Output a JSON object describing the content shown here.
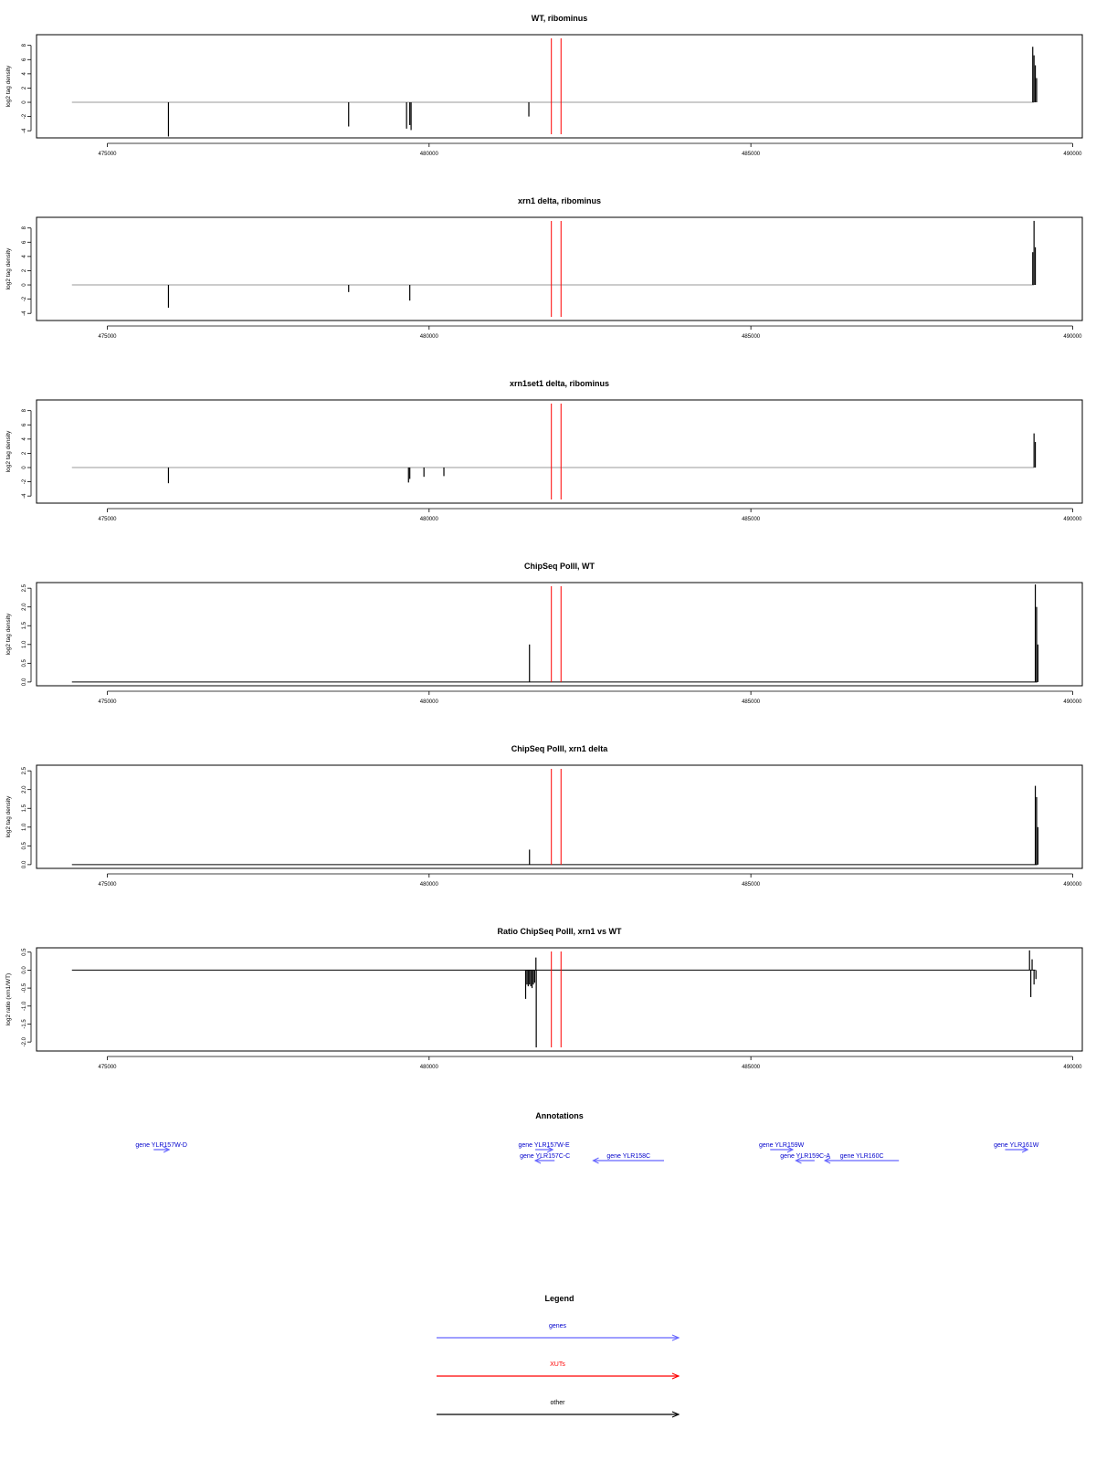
{
  "chart_data": [
    {
      "type": "line",
      "title": "WT, ribominus",
      "ylabel": "log2 tag density",
      "xlim": [
        473900,
        490150
      ],
      "ylim": [
        -5,
        9.5
      ],
      "yticks": [
        -4,
        -2,
        0,
        2,
        4,
        6,
        8
      ],
      "ytick_labels": [
        "-4",
        "-2",
        "0",
        "2",
        "4",
        "6",
        "8"
      ],
      "xticks": [
        475000,
        480000,
        485000,
        490000
      ],
      "xtick_labels": [
        "475000",
        "480000",
        "485000",
        "490000"
      ],
      "baseline": {
        "from": 474450,
        "to": 489400,
        "y": 0,
        "color": "#999999"
      },
      "spikes": [
        {
          "x": 475950,
          "y": -4.8
        },
        {
          "x": 478750,
          "y": -3.4
        },
        {
          "x": 479650,
          "y": -3.7
        },
        {
          "x": 479700,
          "y": -3.2
        },
        {
          "x": 479720,
          "y": -3.9
        },
        {
          "x": 481550,
          "y": -2.0
        },
        {
          "x": 489380,
          "y": 7.8
        },
        {
          "x": 489400,
          "y": 6.6
        },
        {
          "x": 489420,
          "y": 5.2
        },
        {
          "x": 489440,
          "y": 3.4
        }
      ],
      "xut_lines": [
        481900,
        482050
      ]
    },
    {
      "type": "line",
      "title": "xrn1 delta, ribominus",
      "ylabel": "log2 tag density",
      "xlim": [
        473900,
        490150
      ],
      "ylim": [
        -5,
        9.5
      ],
      "yticks": [
        -4,
        -2,
        0,
        2,
        4,
        6,
        8
      ],
      "ytick_labels": [
        "-4",
        "-2",
        "0",
        "2",
        "4",
        "6",
        "8"
      ],
      "xticks": [
        475000,
        480000,
        485000,
        490000
      ],
      "xtick_labels": [
        "475000",
        "480000",
        "485000",
        "490000"
      ],
      "baseline": {
        "from": 474450,
        "to": 489400,
        "y": 0,
        "color": "#999999"
      },
      "spikes": [
        {
          "x": 475950,
          "y": -3.2
        },
        {
          "x": 478750,
          "y": -1.0
        },
        {
          "x": 479700,
          "y": -2.2
        },
        {
          "x": 489400,
          "y": 9.0
        },
        {
          "x": 489420,
          "y": 5.3
        },
        {
          "x": 489380,
          "y": 4.6
        }
      ],
      "xut_lines": [
        481900,
        482050
      ]
    },
    {
      "type": "line",
      "title": "xrn1set1 delta, ribominus",
      "ylabel": "log2 tag density",
      "xlim": [
        473900,
        490150
      ],
      "ylim": [
        -5,
        9.5
      ],
      "yticks": [
        -4,
        -2,
        0,
        2,
        4,
        6,
        8
      ],
      "ytick_labels": [
        "-4",
        "-2",
        "0",
        "2",
        "4",
        "6",
        "8"
      ],
      "xticks": [
        475000,
        480000,
        485000,
        490000
      ],
      "xtick_labels": [
        "475000",
        "480000",
        "485000",
        "490000"
      ],
      "baseline": {
        "from": 474450,
        "to": 489400,
        "y": 0,
        "color": "#999999"
      },
      "spikes": [
        {
          "x": 475950,
          "y": -2.2
        },
        {
          "x": 479680,
          "y": -2.1
        },
        {
          "x": 479700,
          "y": -1.6
        },
        {
          "x": 479920,
          "y": -1.3
        },
        {
          "x": 480230,
          "y": -1.2
        },
        {
          "x": 489400,
          "y": 4.8
        },
        {
          "x": 489420,
          "y": 3.6
        }
      ],
      "xut_lines": [
        481900,
        482050
      ]
    },
    {
      "type": "line",
      "title": "ChipSeq PolII, WT",
      "ylabel": "log2 tag density",
      "xlim": [
        473900,
        490150
      ],
      "ylim": [
        -0.1,
        2.65
      ],
      "yticks": [
        0,
        0.5,
        1,
        1.5,
        2,
        2.5
      ],
      "ytick_labels": [
        "0.0",
        "0.5",
        "1.0",
        "1.5",
        "2.0",
        "2.5"
      ],
      "xticks": [
        475000,
        480000,
        485000,
        490000
      ],
      "xtick_labels": [
        "475000",
        "480000",
        "485000",
        "490000"
      ],
      "baseline": {
        "from": 474450,
        "to": 489450,
        "y": 0,
        "color": "#000000"
      },
      "spikes": [
        {
          "x": 481560,
          "y": 1.0
        },
        {
          "x": 489420,
          "y": 2.6
        },
        {
          "x": 489440,
          "y": 2.0
        },
        {
          "x": 489460,
          "y": 1.0
        }
      ],
      "xut_lines": [
        481900,
        482050
      ]
    },
    {
      "type": "line",
      "title": "ChipSeq PolII, xrn1 delta",
      "ylabel": "log2 tag density",
      "xlim": [
        473900,
        490150
      ],
      "ylim": [
        -0.1,
        2.65
      ],
      "yticks": [
        0,
        0.5,
        1,
        1.5,
        2,
        2.5
      ],
      "ytick_labels": [
        "0.0",
        "0.5",
        "1.0",
        "1.5",
        "2.0",
        "2.5"
      ],
      "xticks": [
        475000,
        480000,
        485000,
        490000
      ],
      "xtick_labels": [
        "475000",
        "480000",
        "485000",
        "490000"
      ],
      "baseline": {
        "from": 474450,
        "to": 489450,
        "y": 0,
        "color": "#000000"
      },
      "spikes": [
        {
          "x": 481560,
          "y": 0.4
        },
        {
          "x": 489420,
          "y": 2.1
        },
        {
          "x": 489440,
          "y": 1.8
        },
        {
          "x": 489460,
          "y": 1.0
        }
      ],
      "xut_lines": [
        481900,
        482050
      ]
    },
    {
      "type": "line",
      "title": "Ratio ChipSeq PolII, xrn1 vs WT",
      "ylabel": "log2 ratio (xrn1/WT)",
      "xlim": [
        473900,
        490150
      ],
      "ylim": [
        -2.25,
        0.62
      ],
      "yticks": [
        -2,
        -1.5,
        -1,
        -0.5,
        0,
        0.5
      ],
      "ytick_labels": [
        "-2.0",
        "-1.5",
        "-1.0",
        "-0.5",
        "0.0",
        "0.5"
      ],
      "xticks": [
        475000,
        480000,
        485000,
        490000
      ],
      "xtick_labels": [
        "475000",
        "480000",
        "485000",
        "490000"
      ],
      "baseline": {
        "from": 474450,
        "to": 489420,
        "y": 0,
        "color": "#000000"
      },
      "spikes": [
        {
          "x": 481500,
          "y": -0.8
        },
        {
          "x": 481520,
          "y": -0.4
        },
        {
          "x": 481540,
          "y": -0.45
        },
        {
          "x": 481560,
          "y": -0.4
        },
        {
          "x": 481580,
          "y": -0.45
        },
        {
          "x": 481600,
          "y": -0.5
        },
        {
          "x": 481620,
          "y": -0.4
        },
        {
          "x": 481640,
          "y": -0.35
        },
        {
          "x": 481660,
          "y": 0.35
        },
        {
          "x": 481665,
          "y": -2.15
        },
        {
          "x": 489330,
          "y": 0.55
        },
        {
          "x": 489350,
          "y": -0.75
        },
        {
          "x": 489370,
          "y": 0.3
        },
        {
          "x": 489400,
          "y": -0.4
        },
        {
          "x": 489430,
          "y": -0.25
        }
      ],
      "xut_lines": [
        481900,
        482050
      ]
    }
  ],
  "annotations": {
    "title": "Annotations",
    "genes": [
      {
        "label": "gene YLR157W-D",
        "x1": 475720,
        "x2": 475960,
        "row": 1
      },
      {
        "label": "gene YLR157W-E",
        "x1": 481650,
        "x2": 481920,
        "row": 1
      },
      {
        "label": "gene YLR157C-C",
        "x1": 481650,
        "x2": 481950,
        "row": 2
      },
      {
        "label": "gene YLR158C",
        "x1": 482550,
        "x2": 483650,
        "row": 2
      },
      {
        "label": "gene YLR159W",
        "x1": 485300,
        "x2": 485650,
        "row": 1
      },
      {
        "label": "gene YLR159C-A",
        "x1": 485700,
        "x2": 485990,
        "row": 2
      },
      {
        "label": "gene YLR160C",
        "x1": 486150,
        "x2": 487300,
        "row": 2
      },
      {
        "label": "gene YLR161W",
        "x1": 488950,
        "x2": 489300,
        "row": 1
      }
    ],
    "gene_direction": [
      "right",
      "right",
      "left",
      "left",
      "right",
      "left",
      "left",
      "right"
    ]
  },
  "legend": {
    "title": "Legend",
    "items": [
      {
        "label": "genes",
        "color": "#0000cc",
        "line_color": "#6666ff"
      },
      {
        "label": "XUTs",
        "color": "#ff0000",
        "line_color": "#ff0000"
      },
      {
        "label": "other",
        "color": "#000000",
        "line_color": "#000000"
      }
    ]
  },
  "colors": {
    "xut": "#ff0000",
    "gene_line": "#6666ff",
    "gene_text": "#0000cc",
    "signal": "#000000"
  }
}
